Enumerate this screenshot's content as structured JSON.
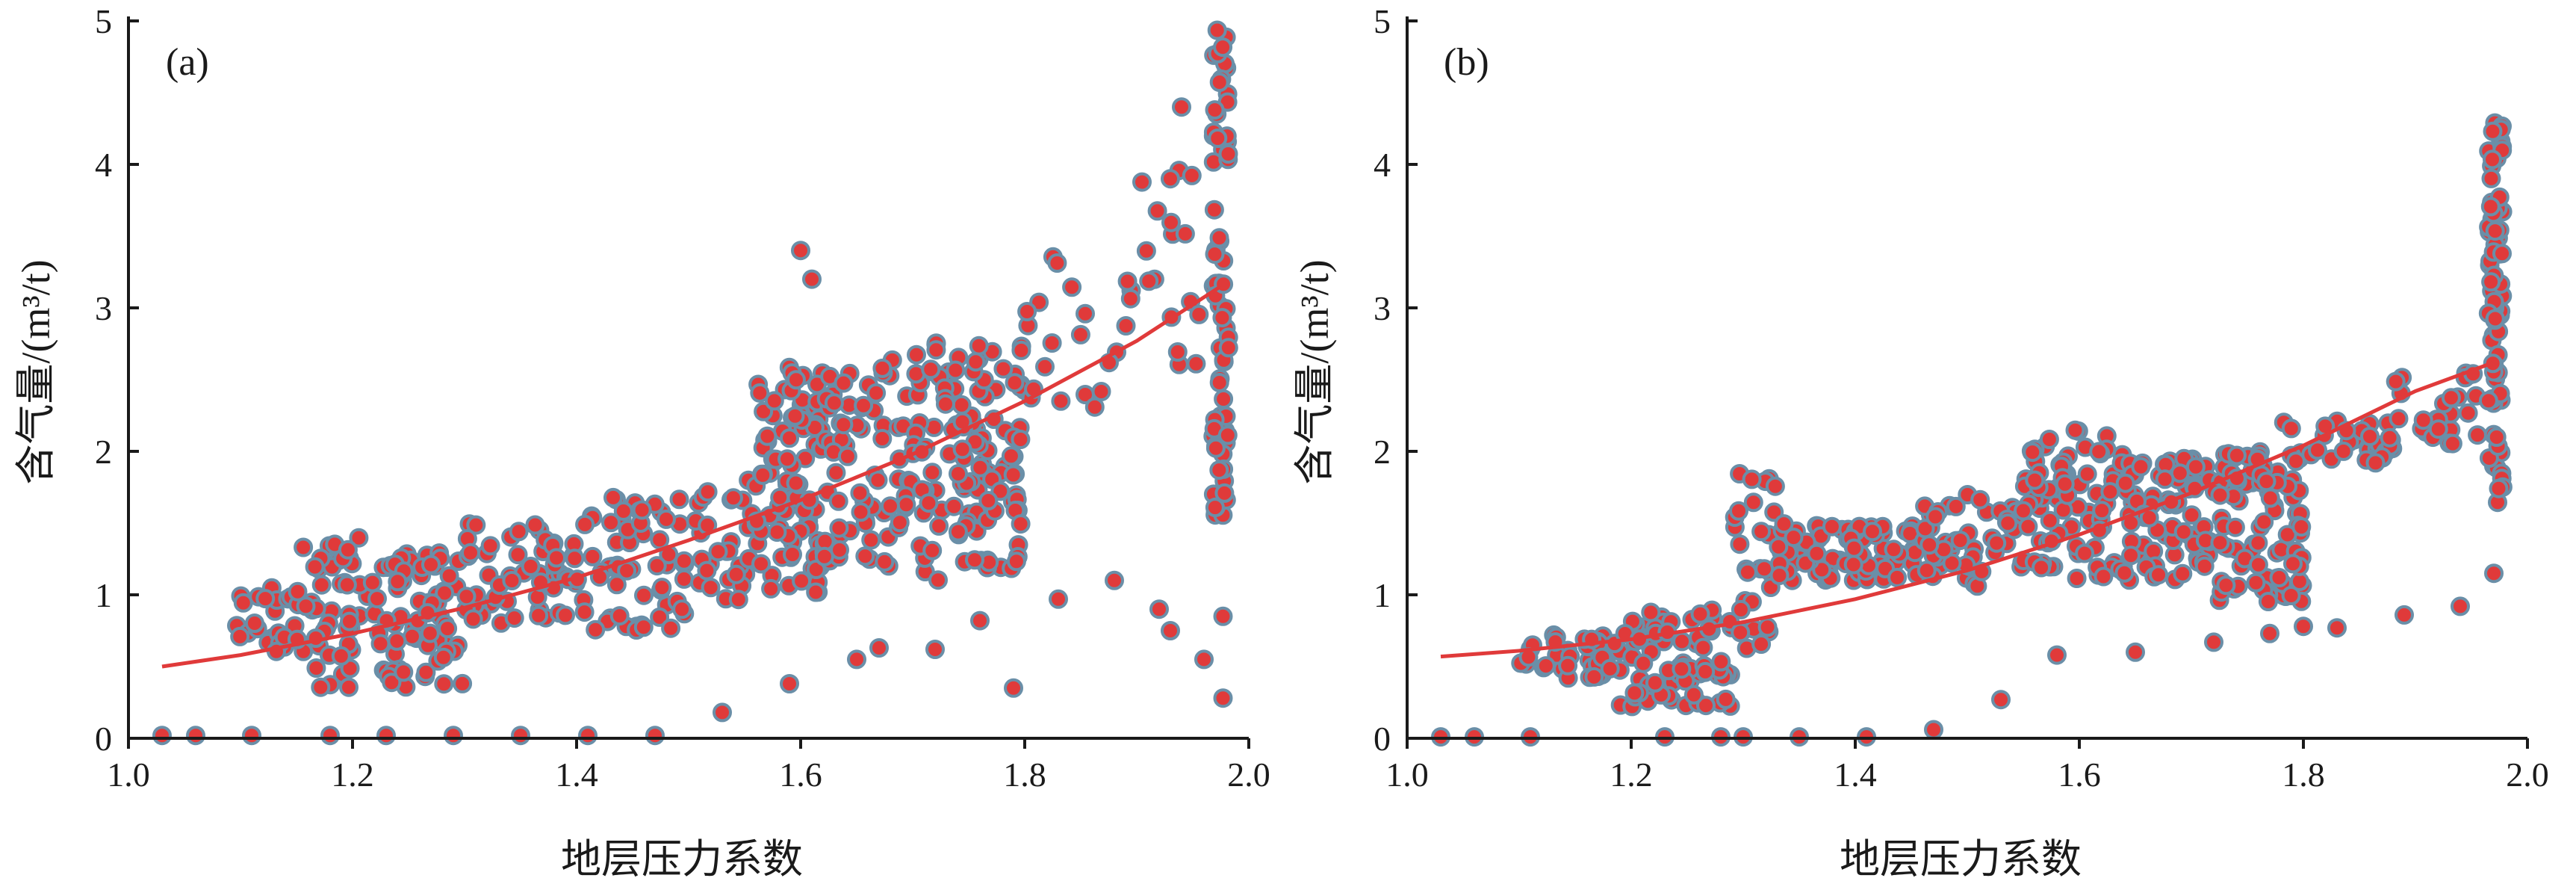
{
  "chart_data": [
    {
      "type": "scatter",
      "panel_label": "(a)",
      "xlabel": "地层压力系数",
      "ylabel": "含气量/(m³/t)",
      "xlim": [
        1.0,
        2.0
      ],
      "ylim": [
        0,
        5
      ],
      "xticks": [
        "1.0",
        "1.2",
        "1.4",
        "1.6",
        "1.8",
        "2.0"
      ],
      "yticks": [
        "0",
        "1",
        "2",
        "3",
        "4",
        "5"
      ],
      "grid": false,
      "marker_fill": "#e03a3a",
      "marker_edge": "#6a8fa8",
      "trend_color": "#e03a3a",
      "trend": {
        "x": [
          1.03,
          1.1,
          1.2,
          1.3,
          1.4,
          1.5,
          1.6,
          1.7,
          1.8,
          1.9,
          1.975
        ],
        "y": [
          0.5,
          0.58,
          0.73,
          0.91,
          1.12,
          1.38,
          1.66,
          1.98,
          2.35,
          2.77,
          3.15
        ]
      },
      "clusters": [
        {
          "xr": [
            1.09,
            1.15
          ],
          "yr": [
            0.55,
            1.05
          ],
          "n": 24
        },
        {
          "xr": [
            1.15,
            1.22
          ],
          "yr": [
            0.35,
            1.4
          ],
          "n": 50
        },
        {
          "xr": [
            1.22,
            1.3
          ],
          "yr": [
            0.35,
            1.3
          ],
          "n": 70
        },
        {
          "xr": [
            1.3,
            1.4
          ],
          "yr": [
            0.8,
            1.5
          ],
          "n": 55
        },
        {
          "xr": [
            1.4,
            1.5
          ],
          "yr": [
            0.75,
            1.7
          ],
          "n": 60
        },
        {
          "xr": [
            1.5,
            1.56
          ],
          "yr": [
            0.95,
            1.8
          ],
          "n": 30
        },
        {
          "xr": [
            1.56,
            1.62
          ],
          "yr": [
            1.0,
            2.6
          ],
          "n": 90
        },
        {
          "xr": [
            1.62,
            1.7
          ],
          "yr": [
            1.2,
            2.7
          ],
          "n": 70
        },
        {
          "xr": [
            1.7,
            1.8
          ],
          "yr": [
            1.1,
            2.8
          ],
          "n": 120
        },
        {
          "xr": [
            1.8,
            1.9
          ],
          "yr": [
            2.3,
            3.4
          ],
          "n": 22
        },
        {
          "xr": [
            1.9,
            1.96
          ],
          "yr": [
            2.6,
            4.0
          ],
          "n": 16
        },
        {
          "xr": [
            1.968,
            1.982
          ],
          "yr": [
            1.5,
            4.95
          ],
          "n": 70
        }
      ],
      "outliers": [
        [
          1.03,
          0.02
        ],
        [
          1.06,
          0.02
        ],
        [
          1.11,
          0.02
        ],
        [
          1.18,
          0.02
        ],
        [
          1.23,
          0.02
        ],
        [
          1.29,
          0.02
        ],
        [
          1.35,
          0.02
        ],
        [
          1.41,
          0.02
        ],
        [
          1.47,
          0.02
        ],
        [
          1.53,
          0.18
        ],
        [
          1.59,
          0.38
        ],
        [
          1.65,
          0.55
        ],
        [
          1.67,
          0.63
        ],
        [
          1.72,
          0.62
        ],
        [
          1.76,
          0.82
        ],
        [
          1.79,
          0.35
        ],
        [
          1.83,
          0.97
        ],
        [
          1.88,
          1.1
        ],
        [
          1.92,
          0.9
        ],
        [
          1.93,
          0.75
        ],
        [
          1.96,
          0.55
        ],
        [
          1.977,
          0.28
        ],
        [
          1.977,
          0.85
        ],
        [
          1.6,
          3.4
        ],
        [
          1.61,
          3.2
        ],
        [
          1.93,
          3.9
        ],
        [
          1.94,
          4.4
        ]
      ]
    },
    {
      "type": "scatter",
      "panel_label": "(b)",
      "xlabel": "地层压力系数",
      "ylabel": "含气量/(m³/t)",
      "xlim": [
        1.0,
        2.0
      ],
      "ylim": [
        0,
        5
      ],
      "xticks": [
        "1.0",
        "1.2",
        "1.4",
        "1.6",
        "1.8",
        "2.0"
      ],
      "yticks": [
        "0",
        "1",
        "2",
        "3",
        "4",
        "5"
      ],
      "grid": false,
      "marker_fill": "#e03a3a",
      "marker_edge": "#6a8fa8",
      "trend_color": "#e03a3a",
      "trend": {
        "x": [
          1.03,
          1.1,
          1.2,
          1.3,
          1.4,
          1.5,
          1.6,
          1.7,
          1.8,
          1.9,
          1.97
        ],
        "y": [
          0.57,
          0.61,
          0.69,
          0.81,
          0.97,
          1.17,
          1.42,
          1.71,
          2.04,
          2.42,
          2.62
        ]
      },
      "clusters": [
        {
          "xr": [
            1.1,
            1.19
          ],
          "yr": [
            0.42,
            0.75
          ],
          "n": 40
        },
        {
          "xr": [
            1.19,
            1.29
          ],
          "yr": [
            0.22,
            0.9
          ],
          "n": 80
        },
        {
          "xr": [
            1.29,
            1.33
          ],
          "yr": [
            0.6,
            1.85
          ],
          "n": 30
        },
        {
          "xr": [
            1.33,
            1.46
          ],
          "yr": [
            1.1,
            1.5
          ],
          "n": 90
        },
        {
          "xr": [
            1.46,
            1.55
          ],
          "yr": [
            1.05,
            1.7
          ],
          "n": 50
        },
        {
          "xr": [
            1.55,
            1.64
          ],
          "yr": [
            1.1,
            2.15
          ],
          "n": 80
        },
        {
          "xr": [
            1.64,
            1.72
          ],
          "yr": [
            1.1,
            1.95
          ],
          "n": 80
        },
        {
          "xr": [
            1.72,
            1.8
          ],
          "yr": [
            0.95,
            2.0
          ],
          "n": 90
        },
        {
          "xr": [
            1.78,
            1.88
          ],
          "yr": [
            1.9,
            2.25
          ],
          "n": 30
        },
        {
          "xr": [
            1.88,
            1.96
          ],
          "yr": [
            2.0,
            2.6
          ],
          "n": 25
        },
        {
          "xr": [
            1.965,
            1.978
          ],
          "yr": [
            1.6,
            4.35
          ],
          "n": 70
        }
      ],
      "outliers": [
        [
          1.03,
          0.01
        ],
        [
          1.06,
          0.01
        ],
        [
          1.11,
          0.01
        ],
        [
          1.23,
          0.01
        ],
        [
          1.28,
          0.01
        ],
        [
          1.3,
          0.01
        ],
        [
          1.35,
          0.01
        ],
        [
          1.41,
          0.01
        ],
        [
          1.47,
          0.06
        ],
        [
          1.53,
          0.27
        ],
        [
          1.58,
          0.58
        ],
        [
          1.65,
          0.6
        ],
        [
          1.72,
          0.67
        ],
        [
          1.77,
          0.73
        ],
        [
          1.8,
          0.78
        ],
        [
          1.83,
          0.77
        ],
        [
          1.89,
          0.86
        ],
        [
          1.94,
          0.92
        ],
        [
          1.97,
          1.15
        ]
      ]
    }
  ]
}
